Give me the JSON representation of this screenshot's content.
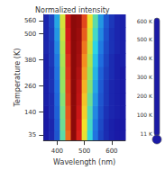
{
  "chart_data": {
    "type": "heatmap",
    "title": "Normalized intensity",
    "x_label": "Wavelength (nm)",
    "y_label": "Temperature (K)",
    "x": [
      360,
      380,
      400,
      420,
      440,
      460,
      480,
      500,
      520,
      540,
      560,
      580,
      600,
      620,
      640
    ],
    "y": [
      35,
      80,
      140,
      200,
      260,
      320,
      380,
      440,
      500,
      560
    ],
    "cells": [
      [
        0,
        0.02,
        0.1,
        0.35,
        0.75,
        1,
        0.85,
        0.55,
        0.3,
        0.15,
        0.07,
        0.03,
        0.01,
        0,
        0
      ],
      [
        0,
        0.02,
        0.11,
        0.37,
        0.77,
        1,
        0.86,
        0.57,
        0.32,
        0.16,
        0.08,
        0.03,
        0.01,
        0,
        0
      ],
      [
        0,
        0.03,
        0.12,
        0.38,
        0.78,
        1,
        0.88,
        0.6,
        0.34,
        0.18,
        0.09,
        0.04,
        0.02,
        0.01,
        0
      ],
      [
        0.01,
        0.03,
        0.13,
        0.4,
        0.8,
        1,
        0.9,
        0.62,
        0.37,
        0.2,
        0.1,
        0.05,
        0.02,
        0.01,
        0
      ],
      [
        0.01,
        0.04,
        0.14,
        0.42,
        0.81,
        1,
        0.91,
        0.65,
        0.4,
        0.22,
        0.11,
        0.05,
        0.02,
        0.01,
        0
      ],
      [
        0.01,
        0.04,
        0.15,
        0.43,
        0.82,
        1,
        0.93,
        0.68,
        0.43,
        0.24,
        0.12,
        0.06,
        0.03,
        0.01,
        0
      ],
      [
        0.01,
        0.05,
        0.16,
        0.45,
        0.83,
        1,
        0.95,
        0.71,
        0.46,
        0.26,
        0.14,
        0.07,
        0.03,
        0.01,
        0.01
      ],
      [
        0.02,
        0.05,
        0.18,
        0.47,
        0.85,
        1,
        0.96,
        0.74,
        0.5,
        0.29,
        0.16,
        0.08,
        0.04,
        0.02,
        0.01
      ],
      [
        0.02,
        0.06,
        0.2,
        0.5,
        0.86,
        1,
        0.97,
        0.77,
        0.53,
        0.32,
        0.18,
        0.09,
        0.04,
        0.02,
        0.01
      ],
      [
        0.02,
        0.07,
        0.22,
        0.52,
        0.88,
        1,
        0.98,
        0.8,
        0.56,
        0.35,
        0.2,
        0.1,
        0.05,
        0.02,
        0.01
      ]
    ],
    "colorbar": {
      "range": [
        0,
        1
      ],
      "colors": [
        "#1a1aa6",
        "#1f6fe0",
        "#2ad4e8",
        "#9be35a",
        "#f5e12a",
        "#f58a1f",
        "#d61a1a",
        "#8c0a0a"
      ]
    },
    "xlim": [
      350,
      650
    ],
    "xticks": [
      400,
      500,
      600
    ],
    "ylim": [
      10,
      590
    ],
    "yticks": [
      35,
      140,
      260,
      380,
      500,
      560
    ],
    "annotations": [
      "600 K",
      "500 K",
      "400 K",
      "300 K",
      "200 K",
      "100 K",
      "11 K"
    ],
    "grid": false
  }
}
